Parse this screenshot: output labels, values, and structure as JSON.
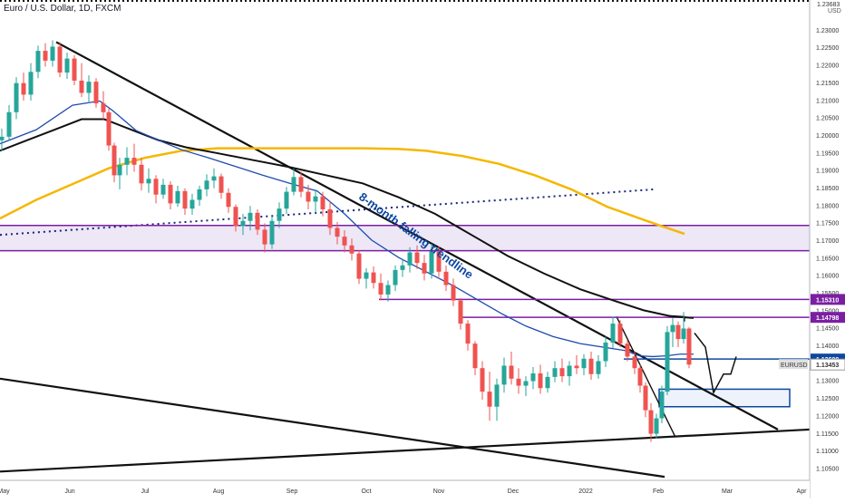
{
  "chart_data": {
    "type": "candlestick",
    "title": "Euro / U.S. Dollar, 1D, FXCM",
    "currency": "USD",
    "x_ticks": [
      "May",
      "Jun",
      "Jul",
      "Aug",
      "Sep",
      "Oct",
      "Nov",
      "Dec",
      "2022",
      "Feb",
      "Mar",
      "Apr"
    ],
    "y_ticks": [
      "1.23000",
      "1.22500",
      "1.22000",
      "1.21500",
      "1.21000",
      "1.20500",
      "1.20000",
      "1.19500",
      "1.19000",
      "1.18500",
      "1.18000",
      "1.17500",
      "1.17000",
      "1.16500",
      "1.16000",
      "1.15500",
      "1.15000",
      "1.14500",
      "1.14000",
      "1.13500",
      "1.13000",
      "1.12500",
      "1.12000",
      "1.11500",
      "1.11000",
      "1.10500"
    ],
    "ylim": [
      1.1015,
      1.2385
    ],
    "xlim": [
      0,
      932
    ],
    "price_labels": [
      {
        "text": "1.15310",
        "value": 1.1531,
        "color": "#7b1fa2"
      },
      {
        "text": "1.14798",
        "value": 1.14798,
        "color": "#7b1fa2"
      },
      {
        "text": "1.13609",
        "value": 1.13609,
        "color": "#0d47a1"
      },
      {
        "text": "1.13453",
        "value": 1.13453,
        "color": "#ffffff",
        "text_color": "#333333"
      },
      {
        "text": "EURUSD",
        "value": 1.13453,
        "color": "#e0e0e0",
        "text_color": "#333333"
      }
    ],
    "top_label": "1.23683",
    "annotation": "8-month falling trendline",
    "colors": {
      "up": "#26a69a",
      "down": "#ef5350",
      "ma_short": "#1e4bb0",
      "ma_mid": "#111111",
      "ma_long": "#f5b700",
      "purple": "#7b1fa2",
      "blue": "#0d47a1",
      "zone_fill": "#ede7f6"
    },
    "ma_short": [
      [
        0,
        1.1975
      ],
      [
        40,
        1.2015
      ],
      [
        80,
        1.2085
      ],
      [
        110,
        1.2097
      ],
      [
        125,
        1.2068
      ],
      [
        150,
        1.2013
      ],
      [
        175,
        1.1985
      ],
      [
        200,
        1.1958
      ],
      [
        230,
        1.1935
      ],
      [
        260,
        1.191
      ],
      [
        290,
        1.1885
      ],
      [
        320,
        1.1862
      ],
      [
        350,
        1.184
      ],
      [
        380,
        1.1775
      ],
      [
        410,
        1.17
      ],
      [
        440,
        1.165
      ],
      [
        470,
        1.161
      ],
      [
        500,
        1.157
      ],
      [
        530,
        1.1525
      ],
      [
        555,
        1.1488
      ],
      [
        580,
        1.1455
      ],
      [
        610,
        1.1425
      ],
      [
        640,
        1.1405
      ],
      [
        665,
        1.1395
      ],
      [
        690,
        1.1385
      ],
      [
        705,
        1.137
      ],
      [
        720,
        1.1368
      ],
      [
        735,
        1.137
      ],
      [
        750,
        1.1375
      ],
      [
        765,
        1.1375
      ]
    ],
    "ma_mid": [
      [
        0,
        1.1955
      ],
      [
        30,
        1.1985
      ],
      [
        60,
        1.2015
      ],
      [
        90,
        1.2045
      ],
      [
        115,
        1.2045
      ],
      [
        145,
        1.2015
      ],
      [
        175,
        1.1985
      ],
      [
        205,
        1.1965
      ],
      [
        240,
        1.1948
      ],
      [
        280,
        1.1928
      ],
      [
        320,
        1.1908
      ],
      [
        360,
        1.1885
      ],
      [
        400,
        1.1862
      ],
      [
        440,
        1.1822
      ],
      [
        480,
        1.1775
      ],
      [
        520,
        1.1715
      ],
      [
        560,
        1.1655
      ],
      [
        600,
        1.1605
      ],
      [
        640,
        1.156
      ],
      [
        680,
        1.1525
      ],
      [
        710,
        1.15
      ],
      [
        740,
        1.1483
      ],
      [
        765,
        1.1478
      ]
    ],
    "ma_long": [
      [
        0,
        1.1762
      ],
      [
        40,
        1.1815
      ],
      [
        80,
        1.186
      ],
      [
        120,
        1.1905
      ],
      [
        160,
        1.1935
      ],
      [
        200,
        1.1955
      ],
      [
        240,
        1.1962
      ],
      [
        280,
        1.1962
      ],
      [
        320,
        1.1962
      ],
      [
        360,
        1.1962
      ],
      [
        400,
        1.1962
      ],
      [
        440,
        1.196
      ],
      [
        470,
        1.1955
      ],
      [
        510,
        1.194
      ],
      [
        550,
        1.1918
      ],
      [
        590,
        1.1885
      ],
      [
        630,
        1.1845
      ],
      [
        670,
        1.1795
      ],
      [
        710,
        1.1758
      ],
      [
        730,
        1.174
      ],
      [
        755,
        1.1718
      ]
    ],
    "candles": [
      [
        2,
        1.1985,
        1.2018,
        1.1955,
        1.1995
      ],
      [
        10,
        1.1995,
        1.2085,
        1.1985,
        1.2065
      ],
      [
        18,
        1.2065,
        1.2165,
        1.2045,
        1.2148
      ],
      [
        26,
        1.2148,
        1.2178,
        1.2098,
        1.2115
      ],
      [
        34,
        1.2115,
        1.2205,
        1.2098,
        1.218
      ],
      [
        42,
        1.218,
        1.2255,
        1.2162,
        1.224
      ],
      [
        50,
        1.224,
        1.2262,
        1.2195,
        1.2212
      ],
      [
        58,
        1.2212,
        1.227,
        1.2195,
        1.2252
      ],
      [
        66,
        1.2252,
        1.2265,
        1.2165,
        1.2178
      ],
      [
        74,
        1.2178,
        1.2235,
        1.216,
        1.2218
      ],
      [
        82,
        1.2218,
        1.2228,
        1.2142,
        1.2155
      ],
      [
        90,
        1.2155,
        1.2205,
        1.2108,
        1.212
      ],
      [
        98,
        1.212,
        1.217,
        1.2092,
        1.2152
      ],
      [
        106,
        1.2152,
        1.2162,
        1.2078,
        1.209
      ],
      [
        114,
        1.209,
        1.2125,
        1.2045,
        1.2065
      ],
      [
        120,
        1.2065,
        1.2075,
        1.1955,
        1.197
      ],
      [
        126,
        1.197,
        1.1978,
        1.1865,
        1.1885
      ],
      [
        132,
        1.1885,
        1.1935,
        1.1845,
        1.1915
      ],
      [
        140,
        1.1915,
        1.1965,
        1.1885,
        1.1935
      ],
      [
        148,
        1.1935,
        1.1975,
        1.1895,
        1.1915
      ],
      [
        156,
        1.1915,
        1.1935,
        1.1842,
        1.1862
      ],
      [
        164,
        1.1862,
        1.1905,
        1.1835,
        1.1875
      ],
      [
        172,
        1.1875,
        1.1885,
        1.1805,
        1.183
      ],
      [
        180,
        1.183,
        1.1875,
        1.1818,
        1.1858
      ],
      [
        188,
        1.1858,
        1.1868,
        1.1788,
        1.1805
      ],
      [
        196,
        1.1805,
        1.1855,
        1.1795,
        1.184
      ],
      [
        204,
        1.184,
        1.1848,
        1.1772,
        1.179
      ],
      [
        212,
        1.179,
        1.1832,
        1.1772,
        1.1815
      ],
      [
        220,
        1.1815,
        1.1855,
        1.1798,
        1.1845
      ],
      [
        228,
        1.1845,
        1.1888,
        1.1825,
        1.187
      ],
      [
        236,
        1.187,
        1.1905,
        1.1848,
        1.1882
      ],
      [
        244,
        1.1882,
        1.189,
        1.1818,
        1.1835
      ],
      [
        252,
        1.1835,
        1.1848,
        1.1778,
        1.1795
      ],
      [
        260,
        1.1795,
        1.1802,
        1.1725,
        1.174
      ],
      [
        268,
        1.174,
        1.1775,
        1.1715,
        1.1755
      ],
      [
        276,
        1.1755,
        1.1798,
        1.1728,
        1.1778
      ],
      [
        284,
        1.1778,
        1.1788,
        1.1715,
        1.173
      ],
      [
        292,
        1.173,
        1.1748,
        1.1665,
        1.1688
      ],
      [
        300,
        1.1688,
        1.1768,
        1.1675,
        1.1755
      ],
      [
        308,
        1.1755,
        1.1808,
        1.1735,
        1.179
      ],
      [
        316,
        1.179,
        1.1852,
        1.1775,
        1.1838
      ],
      [
        324,
        1.1838,
        1.1905,
        1.1828,
        1.188
      ],
      [
        332,
        1.188,
        1.1895,
        1.1822,
        1.1838
      ],
      [
        340,
        1.1838,
        1.1858,
        1.1788,
        1.181
      ],
      [
        348,
        1.181,
        1.1845,
        1.1778,
        1.1825
      ],
      [
        356,
        1.1825,
        1.1838,
        1.1768,
        1.1788
      ],
      [
        364,
        1.1788,
        1.1812,
        1.1715,
        1.1735
      ],
      [
        372,
        1.1735,
        1.1752,
        1.1688,
        1.171
      ],
      [
        380,
        1.171,
        1.1728,
        1.1665,
        1.1685
      ],
      [
        388,
        1.1685,
        1.1705,
        1.1642,
        1.1662
      ],
      [
        396,
        1.1662,
        1.1672,
        1.1575,
        1.159
      ],
      [
        404,
        1.159,
        1.162,
        1.1562,
        1.1608
      ],
      [
        412,
        1.1608,
        1.1625,
        1.1562,
        1.1578
      ],
      [
        420,
        1.1578,
        1.1605,
        1.1528,
        1.1545
      ],
      [
        428,
        1.1545,
        1.1585,
        1.1525,
        1.1572
      ],
      [
        436,
        1.1572,
        1.1628,
        1.1555,
        1.1615
      ],
      [
        444,
        1.1615,
        1.1645,
        1.1595,
        1.1628
      ],
      [
        452,
        1.1628,
        1.168,
        1.1608,
        1.1665
      ],
      [
        460,
        1.1665,
        1.1685,
        1.1618,
        1.1635
      ],
      [
        468,
        1.1635,
        1.1658,
        1.1585,
        1.1605
      ],
      [
        476,
        1.1605,
        1.169,
        1.159,
        1.1668
      ],
      [
        484,
        1.1668,
        1.1682,
        1.1595,
        1.161
      ],
      [
        492,
        1.161,
        1.1628,
        1.1555,
        1.1572
      ],
      [
        500,
        1.1572,
        1.159,
        1.1512,
        1.1528
      ],
      [
        508,
        1.1528,
        1.1535,
        1.1445,
        1.1462
      ],
      [
        516,
        1.1462,
        1.1472,
        1.1385,
        1.1405
      ],
      [
        524,
        1.1405,
        1.1412,
        1.1315,
        1.1335
      ],
      [
        532,
        1.1335,
        1.1355,
        1.1245,
        1.1268
      ],
      [
        540,
        1.1268,
        1.1325,
        1.1185,
        1.1225
      ],
      [
        548,
        1.1225,
        1.1305,
        1.1185,
        1.1288
      ],
      [
        556,
        1.1288,
        1.1365,
        1.1265,
        1.1342
      ],
      [
        564,
        1.1342,
        1.1382,
        1.1288,
        1.1305
      ],
      [
        572,
        1.1305,
        1.1335,
        1.1262,
        1.1285
      ],
      [
        580,
        1.1285,
        1.1312,
        1.1255,
        1.1298
      ],
      [
        588,
        1.1298,
        1.1338,
        1.1275,
        1.132
      ],
      [
        596,
        1.132,
        1.1345,
        1.1262,
        1.1278
      ],
      [
        604,
        1.1278,
        1.1325,
        1.1265,
        1.131
      ],
      [
        612,
        1.131,
        1.1355,
        1.1295,
        1.1335
      ],
      [
        620,
        1.1335,
        1.1362,
        1.1295,
        1.1312
      ],
      [
        628,
        1.1312,
        1.1355,
        1.1285,
        1.1342
      ],
      [
        636,
        1.1342,
        1.1372,
        1.1318,
        1.1335
      ],
      [
        644,
        1.1335,
        1.1375,
        1.1315,
        1.1362
      ],
      [
        652,
        1.1362,
        1.1382,
        1.1302,
        1.1318
      ],
      [
        660,
        1.1318,
        1.1372,
        1.1305,
        1.1355
      ],
      [
        668,
        1.1355,
        1.1425,
        1.1338,
        1.1408
      ],
      [
        676,
        1.1408,
        1.1482,
        1.1392,
        1.1462
      ],
      [
        684,
        1.1462,
        1.1472,
        1.1395,
        1.1405
      ],
      [
        692,
        1.1405,
        1.1415,
        1.1355,
        1.1368
      ],
      [
        700,
        1.1368,
        1.1382,
        1.1318,
        1.1335
      ],
      [
        706,
        1.1335,
        1.1345,
        1.1265,
        1.1285
      ],
      [
        712,
        1.1285,
        1.1295,
        1.1195,
        1.1215
      ],
      [
        718,
        1.1215,
        1.1235,
        1.1125,
        1.1148
      ],
      [
        724,
        1.1148,
        1.1205,
        1.1135,
        1.1192
      ],
      [
        730,
        1.1192,
        1.1285,
        1.1178,
        1.1268
      ],
      [
        736,
        1.1268,
        1.1455,
        1.1258,
        1.1438
      ],
      [
        742,
        1.1438,
        1.1478,
        1.1395,
        1.1458
      ],
      [
        748,
        1.1458,
        1.1468,
        1.1395,
        1.1418
      ],
      [
        754,
        1.1418,
        1.1495,
        1.1405,
        1.1448
      ],
      [
        760,
        1.1448,
        1.1452,
        1.1335,
        1.1345
      ]
    ],
    "lines": [
      {
        "color": "#111111",
        "width": 2.2,
        "points": [
          [
            62,
            1.2265
          ],
          [
            858,
            1.116
          ]
        ]
      },
      {
        "color": "#111111",
        "width": 2.2,
        "points": [
          [
            0,
            1.1305
          ],
          [
            733,
            1.1025
          ]
        ]
      },
      {
        "color": "#111111",
        "width": 2.2,
        "points": [
          [
            0,
            1.104
          ],
          [
            893,
            1.116
          ]
        ]
      },
      {
        "color": "#111111",
        "width": 1.4,
        "points": [
          [
            680,
            1.1482
          ],
          [
            745,
            1.1138
          ]
        ]
      },
      {
        "color": "#1a237e",
        "width": 2,
        "dash": "2 4",
        "points": [
          [
            0,
            1.1715
          ],
          [
            722,
            1.1845
          ]
        ]
      },
      {
        "color": "#7b1fa2",
        "width": 1.5,
        "points": [
          [
            0,
            1.1742
          ],
          [
            893,
            1.1742
          ]
        ]
      },
      {
        "color": "#7b1fa2",
        "width": 1.5,
        "points": [
          [
            0,
            1.167
          ],
          [
            893,
            1.167
          ]
        ]
      },
      {
        "color": "#7b1fa2",
        "width": 1.5,
        "points": [
          [
            418,
            1.1531
          ],
          [
            893,
            1.1531
          ]
        ]
      },
      {
        "color": "#7b1fa2",
        "width": 1.5,
        "points": [
          [
            508,
            1.14798
          ],
          [
            893,
            1.14798
          ]
        ]
      },
      {
        "color": "#0d47a1",
        "width": 1.5,
        "points": [
          [
            688,
            1.13609
          ],
          [
            893,
            1.13609
          ]
        ]
      },
      {
        "color": "#111111",
        "width": 1.2,
        "points": [
          [
            738,
            1.1485
          ],
          [
            755,
            1.1482
          ],
          [
            755,
            1.1468
          ]
        ]
      },
      {
        "color": "#111111",
        "width": 1.5,
        "points": [
          [
            766,
            1.1435
          ],
          [
            778,
            1.1395
          ],
          [
            787,
            1.1265
          ],
          [
            798,
            1.1318
          ],
          [
            806,
            1.1318
          ],
          [
            812,
            1.1368
          ]
        ]
      }
    ],
    "rects": [
      {
        "x0": 0,
        "x1": 893,
        "y0": 1.1742,
        "y1": 1.167,
        "fill": "#ede7f6",
        "stroke": "none"
      },
      {
        "x0": 727,
        "x1": 871,
        "y0": 1.1275,
        "y1": 1.1225,
        "fill": "#eef3fb",
        "stroke": "#0d47a1"
      }
    ]
  }
}
